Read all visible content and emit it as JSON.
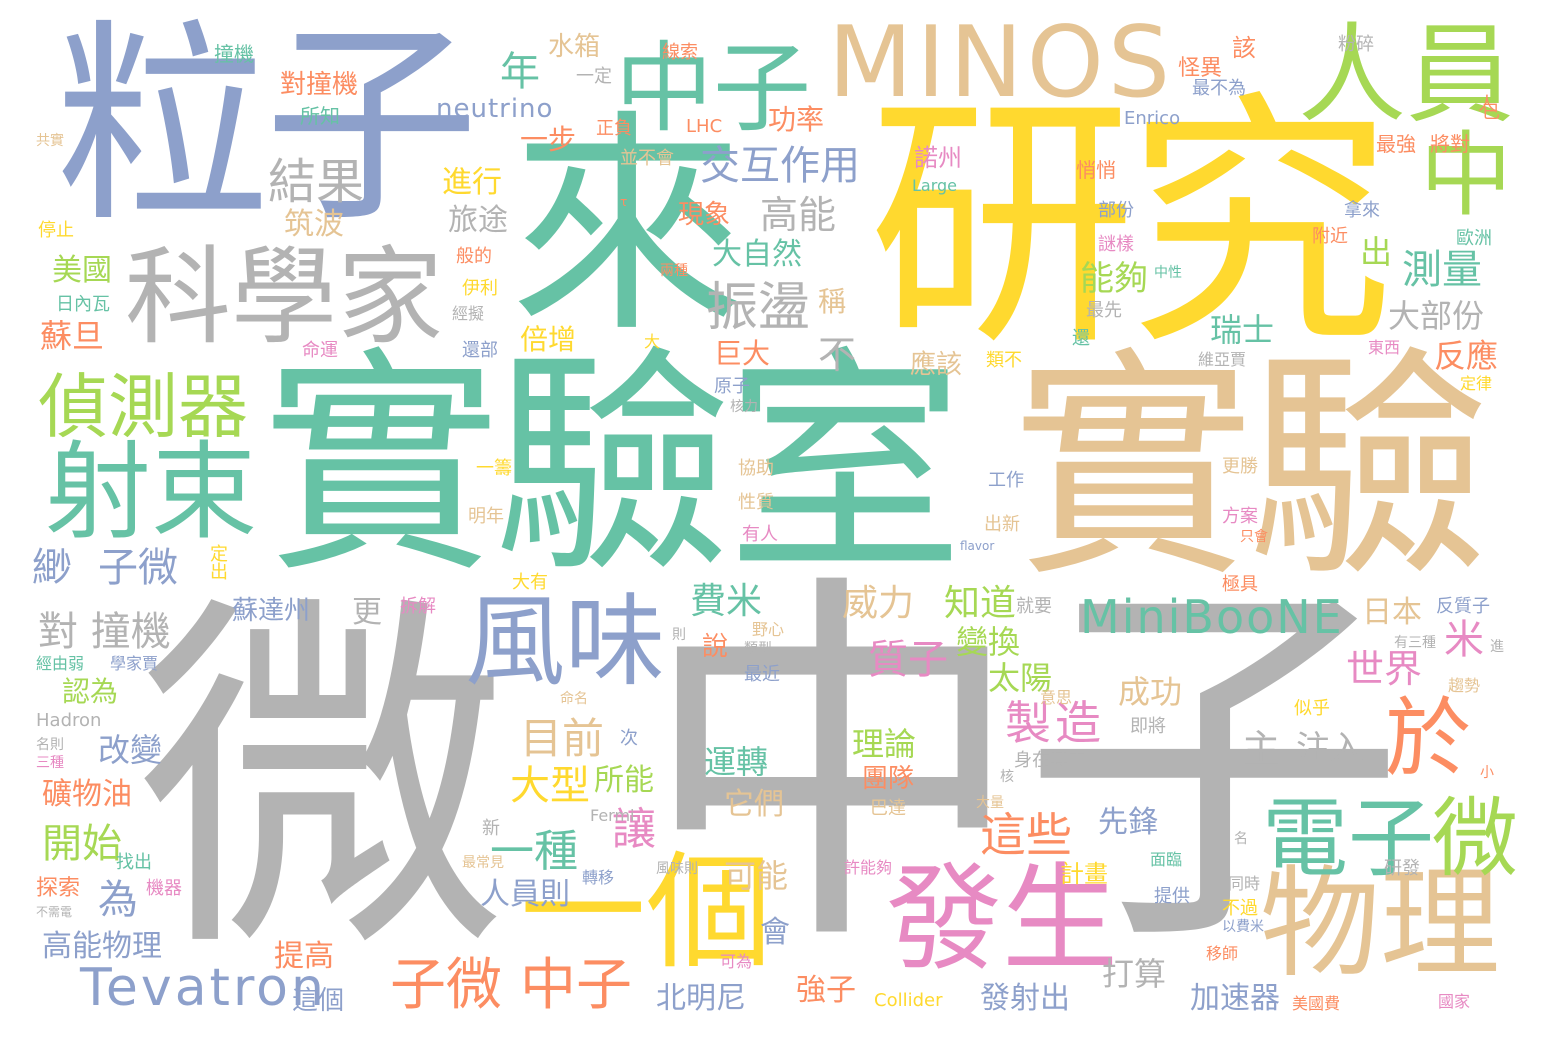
{
  "title": "",
  "palette": {
    "gray": "#b3b3b3",
    "teal": "#66c2a5",
    "gold": "#e5c494",
    "yellow": "#ffd92f",
    "blue": "#8da0cb",
    "orange": "#fc8d62",
    "pink": "#e78ac3",
    "green": "#a6d854"
  },
  "words": [
    {
      "text": "微",
      "color": "gray"
    },
    {
      "text": "中子",
      "color": "gray"
    },
    {
      "text": "實驗室",
      "color": "teal"
    },
    {
      "text": "實驗",
      "color": "gold"
    },
    {
      "text": "研究",
      "color": "yellow"
    },
    {
      "text": "粒子",
      "color": "blue"
    },
    {
      "text": "來",
      "color": "teal"
    },
    {
      "text": "科學家",
      "color": "gray"
    },
    {
      "text": "MINOS",
      "color": "gold"
    },
    {
      "text": "中子",
      "color": "teal"
    },
    {
      "text": "人員",
      "color": "green"
    },
    {
      "text": "中",
      "color": "green"
    },
    {
      "text": "射束",
      "color": "teal"
    },
    {
      "text": "偵測器",
      "color": "green"
    },
    {
      "text": "風味",
      "color": "blue"
    },
    {
      "text": "一個",
      "color": "yellow"
    },
    {
      "text": "發生",
      "color": "pink"
    },
    {
      "text": "物理",
      "color": "gold"
    },
    {
      "text": "電子",
      "color": "teal"
    },
    {
      "text": "微",
      "color": "green"
    },
    {
      "text": "於",
      "color": "orange"
    },
    {
      "text": "MiniBooNE",
      "color": "teal"
    },
    {
      "text": "Tevatron",
      "color": "blue"
    },
    {
      "text": "子微",
      "color": "orange"
    },
    {
      "text": "中子",
      "color": "orange"
    },
    {
      "text": "結果",
      "color": "gray"
    },
    {
      "text": "振盪",
      "color": "gray"
    },
    {
      "text": "交互作用",
      "color": "blue"
    },
    {
      "text": "測量",
      "color": "teal"
    },
    {
      "text": "年",
      "color": "teal"
    },
    {
      "text": "高能",
      "color": "gray"
    },
    {
      "text": "製造",
      "color": "pink"
    },
    {
      "text": "目前",
      "color": "gold"
    },
    {
      "text": "大型",
      "color": "yellow"
    },
    {
      "text": "這些",
      "color": "orange"
    },
    {
      "text": "一種",
      "color": "teal"
    },
    {
      "text": "讓",
      "color": "pink"
    },
    {
      "text": "質子",
      "color": "pink"
    },
    {
      "text": "費米",
      "color": "teal"
    },
    {
      "text": "威力",
      "color": "gold"
    },
    {
      "text": "知道",
      "color": "green"
    },
    {
      "text": "變換",
      "color": "green"
    },
    {
      "text": "世界",
      "color": "pink"
    },
    {
      "text": "米",
      "color": "pink"
    },
    {
      "text": "日本",
      "color": "gold"
    },
    {
      "text": "反應",
      "color": "orange"
    },
    {
      "text": "瑞士",
      "color": "teal"
    },
    {
      "text": "大部份",
      "color": "gray"
    },
    {
      "text": "能夠",
      "color": "green"
    },
    {
      "text": "出",
      "color": "green"
    },
    {
      "text": "主",
      "color": "gray"
    },
    {
      "text": "注入",
      "color": "gray"
    },
    {
      "text": "成功",
      "color": "gold"
    },
    {
      "text": "太陽",
      "color": "green"
    },
    {
      "text": "理論",
      "color": "green"
    },
    {
      "text": "團隊",
      "color": "orange"
    },
    {
      "text": "運轉",
      "color": "teal"
    },
    {
      "text": "它們",
      "color": "gold"
    },
    {
      "text": "可能",
      "color": "gold"
    },
    {
      "text": "先鋒",
      "color": "blue"
    },
    {
      "text": "計畫",
      "color": "yellow"
    },
    {
      "text": "加速器",
      "color": "blue"
    },
    {
      "text": "打算",
      "color": "gray"
    },
    {
      "text": "發射出",
      "color": "blue"
    },
    {
      "text": "強子",
      "color": "orange"
    },
    {
      "text": "北明尼",
      "color": "blue"
    },
    {
      "text": "人員則",
      "color": "blue"
    },
    {
      "text": "所能",
      "color": "green"
    },
    {
      "text": "為",
      "color": "blue"
    },
    {
      "text": "開始",
      "color": "green"
    },
    {
      "text": "高能物理",
      "color": "blue"
    },
    {
      "text": "礦物油",
      "color": "orange"
    },
    {
      "text": "改變",
      "color": "blue"
    },
    {
      "text": "認為",
      "color": "green"
    },
    {
      "text": "對 撞機",
      "color": "gray"
    },
    {
      "text": "緲",
      "color": "blue"
    },
    {
      "text": "子微",
      "color": "blue"
    },
    {
      "text": "更",
      "color": "gray"
    },
    {
      "text": "蘇達州",
      "color": "blue"
    },
    {
      "text": "不",
      "color": "gray"
    },
    {
      "text": "倍增",
      "color": "yellow"
    },
    {
      "text": "巨大",
      "color": "orange"
    },
    {
      "text": "稱",
      "color": "gold"
    },
    {
      "text": "應該",
      "color": "gold"
    },
    {
      "text": "大自然",
      "color": "teal"
    },
    {
      "text": "現象",
      "color": "orange"
    },
    {
      "text": "旅途",
      "color": "gray"
    },
    {
      "text": "進行",
      "color": "yellow"
    },
    {
      "text": "筑波",
      "color": "gold"
    },
    {
      "text": "美國",
      "color": "green"
    },
    {
      "text": "蘇旦",
      "color": "orange"
    },
    {
      "text": "一步",
      "color": "orange"
    },
    {
      "text": "功率",
      "color": "orange"
    },
    {
      "text": "neutrino",
      "color": "blue"
    },
    {
      "text": "水箱",
      "color": "gold"
    },
    {
      "text": "對撞機",
      "color": "orange"
    },
    {
      "text": "撞機",
      "color": "teal"
    },
    {
      "text": "所知",
      "color": "teal"
    },
    {
      "text": "提高",
      "color": "orange"
    },
    {
      "text": "這個",
      "color": "blue"
    },
    {
      "text": "會",
      "color": "blue"
    },
    {
      "text": "該",
      "color": "orange"
    },
    {
      "text": "怪異",
      "color": "orange"
    },
    {
      "text": "諾州",
      "color": "pink"
    },
    {
      "text": "悄悄",
      "color": "orange"
    },
    {
      "text": "部份",
      "color": "blue"
    },
    {
      "text": "謎樣",
      "color": "pink"
    },
    {
      "text": "附近",
      "color": "orange"
    },
    {
      "text": "拿來",
      "color": "blue"
    },
    {
      "text": "歐洲",
      "color": "teal"
    },
    {
      "text": "最強",
      "color": "orange"
    },
    {
      "text": "將對",
      "color": "orange"
    },
    {
      "text": "一定",
      "color": "gray"
    },
    {
      "text": "正負",
      "color": "orange"
    },
    {
      "text": "並不會",
      "color": "gold"
    },
    {
      "text": "LHC",
      "color": "orange"
    },
    {
      "text": "線索",
      "color": "orange"
    },
    {
      "text": "粉碎",
      "color": "gray"
    },
    {
      "text": "最不為",
      "color": "blue"
    },
    {
      "text": "Enrico",
      "color": "blue"
    },
    {
      "text": "人",
      "color": "orange"
    },
    {
      "text": "已",
      "color": "orange"
    },
    {
      "text": "Large",
      "color": "teal"
    },
    {
      "text": "共實",
      "color": "gold"
    },
    {
      "text": "停止",
      "color": "yellow"
    },
    {
      "text": "日內瓦",
      "color": "teal"
    },
    {
      "text": "經由弱",
      "color": "teal"
    },
    {
      "text": "學家賈",
      "color": "blue"
    },
    {
      "text": "Hadron",
      "color": "gray"
    },
    {
      "text": "名則",
      "color": "gray"
    },
    {
      "text": "三種",
      "color": "pink"
    },
    {
      "text": "新",
      "color": "gray"
    },
    {
      "text": "找出",
      "color": "teal"
    },
    {
      "text": "探索",
      "color": "orange"
    },
    {
      "text": "機器",
      "color": "pink"
    },
    {
      "text": "不需電",
      "color": "gray"
    },
    {
      "text": "最常見",
      "color": "gold"
    },
    {
      "text": "轉移",
      "color": "blue"
    },
    {
      "text": "風味則",
      "color": "gray"
    },
    {
      "text": "許能夠",
      "color": "pink"
    },
    {
      "text": "提供",
      "color": "blue"
    },
    {
      "text": "以費米",
      "color": "blue"
    },
    {
      "text": "移師",
      "color": "orange"
    },
    {
      "text": "美國費",
      "color": "orange"
    },
    {
      "text": "國家",
      "color": "pink"
    },
    {
      "text": "Collider",
      "color": "yellow"
    },
    {
      "text": "可為",
      "color": "pink"
    },
    {
      "text": "巴達",
      "color": "gold"
    },
    {
      "text": "Fermi",
      "color": "gray"
    },
    {
      "text": "次",
      "color": "blue"
    },
    {
      "text": "命名",
      "color": "gold"
    },
    {
      "text": "意思",
      "color": "gold"
    },
    {
      "text": "即將",
      "color": "gray"
    },
    {
      "text": "身在其中",
      "color": "gray"
    },
    {
      "text": "核",
      "color": "gray"
    },
    {
      "text": "大量",
      "color": "gold"
    },
    {
      "text": "似乎",
      "color": "yellow"
    },
    {
      "text": "趨勢",
      "color": "gold"
    },
    {
      "text": "小",
      "color": "orange"
    },
    {
      "text": "研發",
      "color": "gray"
    },
    {
      "text": "同時",
      "color": "gray"
    },
    {
      "text": "不過",
      "color": "yellow"
    },
    {
      "text": "面臨",
      "color": "teal"
    },
    {
      "text": "名",
      "color": "gray"
    },
    {
      "text": "反質子",
      "color": "blue"
    },
    {
      "text": "有三種",
      "color": "gray"
    },
    {
      "text": "進",
      "color": "gray"
    },
    {
      "text": "極具",
      "color": "orange"
    },
    {
      "text": "就要",
      "color": "gray"
    },
    {
      "text": "最近",
      "color": "blue"
    },
    {
      "text": "野心",
      "color": "gold"
    },
    {
      "text": "類型",
      "color": "gray"
    },
    {
      "text": "說",
      "color": "orange"
    },
    {
      "text": "則",
      "color": "gray"
    },
    {
      "text": "拆解",
      "color": "pink"
    },
    {
      "text": "大有",
      "color": "yellow"
    },
    {
      "text": "定出",
      "color": "yellow"
    },
    {
      "text": "flavor",
      "color": "blue"
    },
    {
      "text": "方案",
      "color": "pink"
    },
    {
      "text": "只會",
      "color": "orange"
    },
    {
      "text": "更勝",
      "color": "gold"
    },
    {
      "text": "工作",
      "color": "blue"
    },
    {
      "text": "出新",
      "color": "gold"
    },
    {
      "text": "明年",
      "color": "gold"
    },
    {
      "text": "一籌",
      "color": "yellow"
    },
    {
      "text": "有人",
      "color": "pink"
    },
    {
      "text": "性質",
      "color": "gold"
    },
    {
      "text": "協助",
      "color": "gold"
    },
    {
      "text": "原子",
      "color": "blue"
    },
    {
      "text": "核力",
      "color": "gray"
    },
    {
      "text": "類不",
      "color": "yellow"
    },
    {
      "text": "命運",
      "color": "pink"
    },
    {
      "text": "還部",
      "color": "blue"
    },
    {
      "text": "經擬",
      "color": "gray"
    },
    {
      "text": "伊利",
      "color": "yellow"
    },
    {
      "text": "般的",
      "color": "orange"
    },
    {
      "text": "大",
      "color": "yellow"
    },
    {
      "text": "兩種",
      "color": "orange"
    },
    {
      "text": "最先",
      "color": "gray"
    },
    {
      "text": "還",
      "color": "teal"
    },
    {
      "text": "中性",
      "color": "teal"
    },
    {
      "text": "維亞賈",
      "color": "gray"
    },
    {
      "text": "東西",
      "color": "pink"
    },
    {
      "text": "定律",
      "color": "yellow"
    },
    {
      "text": "τ",
      "color": "orange"
    }
  ]
}
